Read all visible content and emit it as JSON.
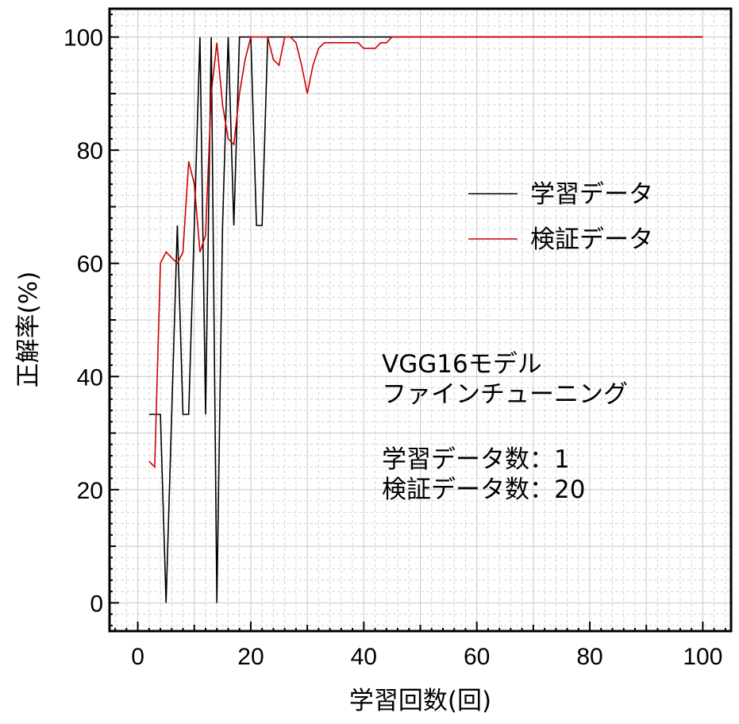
{
  "chart_data": {
    "type": "line",
    "title": "",
    "xlabel": "学習回数(回)",
    "ylabel": "正解率(%)",
    "xlim": [
      -5,
      105
    ],
    "ylim": [
      -5,
      105
    ],
    "xticks": [
      "0",
      "20",
      "40",
      "60",
      "80",
      "100"
    ],
    "yticks": [
      "0",
      "20",
      "40",
      "60",
      "80",
      "100"
    ],
    "grid": true,
    "legend_position": "right",
    "series": [
      {
        "name": "学習データ",
        "color": "#000000",
        "x": [
          2,
          3,
          4,
          5,
          6,
          7,
          8,
          9,
          10,
          11,
          12,
          13,
          14,
          15,
          16,
          17,
          18,
          19,
          20,
          21,
          22,
          23,
          24,
          25,
          26,
          27,
          28,
          29,
          30,
          35,
          40,
          45,
          50,
          60,
          70,
          80,
          90,
          100
        ],
        "y": [
          33.3,
          33.3,
          33.3,
          0,
          33.3,
          66.7,
          33.3,
          33.3,
          66.7,
          100,
          33.3,
          100,
          0,
          66.7,
          100,
          66.7,
          100,
          100,
          100,
          66.7,
          66.7,
          100,
          100,
          100,
          100,
          100,
          100,
          100,
          100,
          100,
          100,
          100,
          100,
          100,
          100,
          100,
          100,
          100
        ]
      },
      {
        "name": "検証データ",
        "color": "#cc0000",
        "x": [
          2,
          3,
          4,
          5,
          6,
          7,
          8,
          9,
          10,
          11,
          12,
          13,
          14,
          15,
          16,
          17,
          18,
          19,
          20,
          21,
          22,
          23,
          24,
          25,
          26,
          27,
          28,
          29,
          30,
          31,
          32,
          33,
          34,
          35,
          36,
          37,
          38,
          39,
          40,
          41,
          42,
          43,
          44,
          45,
          46,
          50,
          60,
          70,
          80,
          90,
          100
        ],
        "y": [
          25,
          24,
          60,
          62,
          61,
          60,
          62,
          78,
          74,
          62,
          65,
          90,
          99,
          88,
          82,
          81,
          90,
          96,
          100,
          100,
          100,
          100,
          96,
          95,
          100,
          100,
          99,
          95,
          90,
          95,
          98,
          99,
          99,
          99,
          99,
          99,
          99,
          99,
          98,
          98,
          98,
          99,
          99,
          100,
          100,
          100,
          100,
          100,
          100,
          100,
          100
        ]
      }
    ],
    "annotations": [
      "VGG16モデル",
      "ファインチューニング",
      "学習データ数：1",
      "検証データ数：20"
    ]
  }
}
